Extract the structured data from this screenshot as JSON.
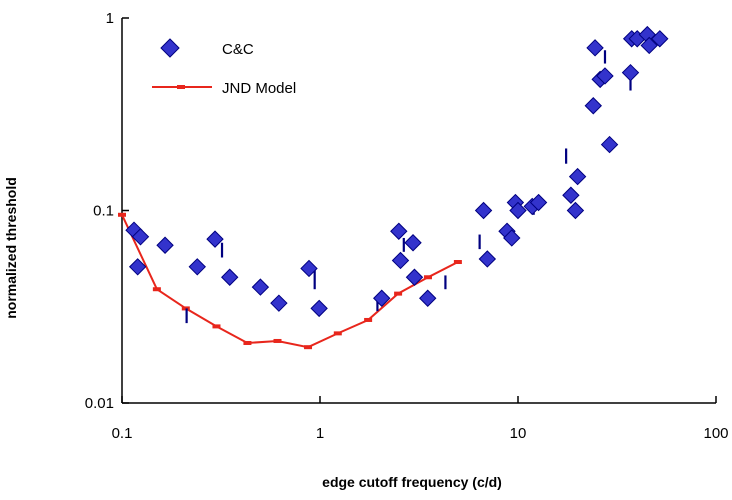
{
  "chart_data": {
    "type": "scatter",
    "xlabel": "edge cutoff frequency (c/d)",
    "ylabel": "normalized threshold",
    "xscale": "log",
    "yscale": "log",
    "xlim": [
      0.1,
      100
    ],
    "ylim": [
      0.01,
      1
    ],
    "x_ticks": [
      "0.1",
      "1",
      "10",
      "100"
    ],
    "y_ticks": [
      "0.01",
      "0.1",
      "1"
    ],
    "legend": {
      "position": "top-left",
      "entries": [
        "C&C",
        "JND Model"
      ]
    },
    "colors": {
      "cc": "#3333cc",
      "cc_edge": "#000080",
      "jnd": "#e8261c",
      "error_bar": "#000080"
    },
    "series": [
      {
        "name": "C&C",
        "type": "scatter",
        "x": [
          0.115,
          0.12,
          0.124,
          0.165,
          0.24,
          0.295,
          0.35,
          0.5,
          0.62,
          0.88,
          0.99,
          2.05,
          2.5,
          2.55,
          2.95,
          3.0,
          3.5,
          6.7,
          7.0,
          8.8,
          9.3,
          9.7,
          10.0,
          11.8,
          12.7,
          18.5,
          19.5,
          20.0,
          24.0,
          24.5,
          26.0,
          27.5,
          29.0,
          37.0,
          37.5,
          40.0,
          45.0,
          46.0,
          52.0
        ],
        "y": [
          0.079,
          0.051,
          0.073,
          0.066,
          0.051,
          0.071,
          0.045,
          0.04,
          0.033,
          0.05,
          0.031,
          0.035,
          0.078,
          0.055,
          0.068,
          0.045,
          0.035,
          0.1,
          0.056,
          0.078,
          0.072,
          0.11,
          0.1,
          0.105,
          0.11,
          0.12,
          0.1,
          0.15,
          0.35,
          0.7,
          0.48,
          0.5,
          0.22,
          0.52,
          0.78,
          0.78,
          0.82,
          0.72,
          0.78
        ]
      },
      {
        "name": "JND Model",
        "type": "line",
        "x": [
          0.1,
          0.15,
          0.21,
          0.3,
          0.43,
          0.61,
          0.87,
          1.23,
          1.75,
          2.48,
          3.51,
          4.97
        ],
        "y": [
          0.095,
          0.039,
          0.031,
          0.025,
          0.0205,
          0.021,
          0.0195,
          0.023,
          0.027,
          0.037,
          0.045,
          0.054
        ]
      },
      {
        "name": "",
        "type": "error_bars",
        "x": [
          0.212,
          0.32,
          0.94,
          1.95,
          2.65,
          4.3,
          6.4,
          12.0,
          17.5,
          27.5,
          37.0
        ],
        "y_low": [
          0.026,
          0.057,
          0.039,
          0.03,
          0.061,
          0.039,
          0.063,
          0.095,
          0.175,
          0.58,
          0.42
        ],
        "y_high": [
          0.031,
          0.068,
          0.049,
          0.036,
          0.072,
          0.046,
          0.075,
          0.11,
          0.21,
          0.68,
          0.5
        ]
      }
    ]
  }
}
